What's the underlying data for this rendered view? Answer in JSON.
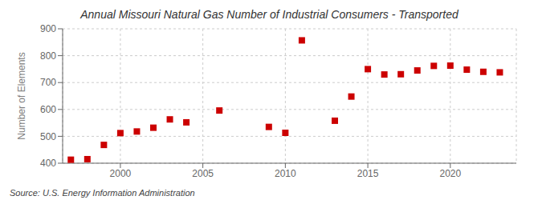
{
  "chart_data": {
    "type": "scatter",
    "title": "Annual Missouri Natural Gas Number of Industrial Consumers - Transported",
    "ylabel": "Number of Elements",
    "annotations": [
      "Source: U.S. Energy Information Administration"
    ],
    "x": [
      1997,
      1998,
      1999,
      2000,
      2001,
      2002,
      2003,
      2004,
      2006,
      2009,
      2010,
      2011,
      2013,
      2014,
      2015,
      2016,
      2017,
      2018,
      2019,
      2020,
      2021,
      2022,
      2023
    ],
    "values": [
      413,
      415,
      468,
      512,
      518,
      532,
      563,
      552,
      596,
      535,
      513,
      857,
      558,
      648,
      750,
      730,
      731,
      745,
      762,
      763,
      748,
      740,
      738
    ],
    "color": "#cc0000",
    "marker": "square",
    "xlim": [
      1996.5,
      2024
    ],
    "ylim": [
      400,
      900
    ],
    "xticks": [
      2000,
      2005,
      2010,
      2015,
      2020
    ],
    "yticks": [
      400,
      500,
      600,
      700,
      800,
      900
    ],
    "grid": true
  }
}
